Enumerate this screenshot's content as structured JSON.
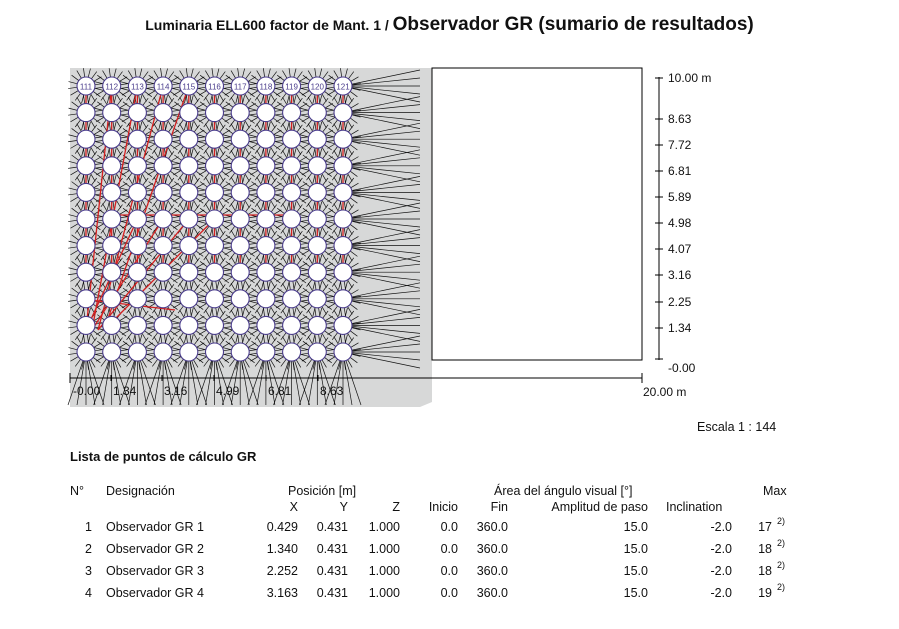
{
  "title": {
    "part1": "Luminaria ELL600 factor de Mant. 1 / ",
    "part2": "Observador GR (sumario de resultados)"
  },
  "grid_labels_top": [
    "111",
    "112",
    "113",
    "114",
    "115",
    "116",
    "117",
    "118",
    "119",
    "120",
    "121"
  ],
  "y_axis_labels": [
    "10.00 m",
    "8.63",
    "7.72",
    "6.81",
    "5.89",
    "4.98",
    "4.07",
    "3.16",
    "2.25",
    "1.34",
    "-0.00"
  ],
  "x_axis_labels": [
    "-0.00",
    "1.34",
    "3.16",
    "4.99",
    "6.81",
    "8.63"
  ],
  "x_axis_end_label": "20.00 m",
  "scale": "Escala 1 : 144",
  "list_title": "Lista de puntos de cálculo GR",
  "table": {
    "headers": {
      "no": "N°",
      "designation": "Designación",
      "position": "Posición [m]",
      "x": "X",
      "y": "Y",
      "z": "Z",
      "visual_area": "Área del ángulo visual [°]",
      "start": "Inicio",
      "end": "Fin",
      "step": "Amplitud de paso",
      "inclination": "Inclination",
      "max": "Max"
    },
    "rows": [
      {
        "no": "1",
        "name": "Observador GR 1",
        "x": "0.429",
        "y": "0.431",
        "z": "1.000",
        "start": "0.0",
        "end": "360.0",
        "step": "15.0",
        "incl": "-2.0",
        "max": "17",
        "note": "2)"
      },
      {
        "no": "2",
        "name": "Observador GR 2",
        "x": "1.340",
        "y": "0.431",
        "z": "1.000",
        "start": "0.0",
        "end": "360.0",
        "step": "15.0",
        "incl": "-2.0",
        "max": "18",
        "note": "2)"
      },
      {
        "no": "3",
        "name": "Observador GR 3",
        "x": "2.252",
        "y": "0.431",
        "z": "1.000",
        "start": "0.0",
        "end": "360.0",
        "step": "15.0",
        "incl": "-2.0",
        "max": "18",
        "note": "2)"
      },
      {
        "no": "4",
        "name": "Observador GR 4",
        "x": "3.163",
        "y": "0.431",
        "z": "1.000",
        "start": "0.0",
        "end": "360.0",
        "step": "15.0",
        "incl": "-2.0",
        "max": "19",
        "note": "2)"
      }
    ]
  }
}
